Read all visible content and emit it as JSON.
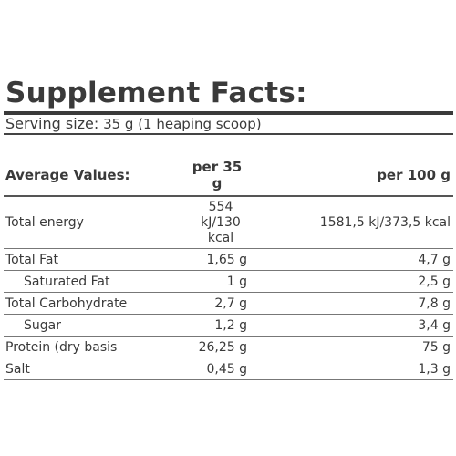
{
  "title": "Supplement Facts:",
  "serving": {
    "label": "Serving size:",
    "value": " 35 g (1 heaping scoop)"
  },
  "table": {
    "headers": [
      "Average Values:",
      "per 35 g",
      "per 100 g"
    ],
    "rows": [
      {
        "name": "Total energy",
        "per35": "554 kJ/130 kcal",
        "per100": "1581,5 kJ/373,5 kcal"
      },
      {
        "name": "Total Fat",
        "per35": "1,65 g",
        "per100": "4,7 g"
      },
      {
        "name": "Saturated Fat",
        "per35": "1 g",
        "per100": "2,5 g"
      },
      {
        "name": "Total Carbohydrate",
        "per35": "2,7 g",
        "per100": "7,8 g"
      },
      {
        "name": "Sugar",
        "per35": "1,2 g",
        "per100": "3,4 g"
      },
      {
        "name": "Protein (dry basis",
        "per35": "26,25 g",
        "per100": "75 g"
      },
      {
        "name": "Salt",
        "per35": "0,45 g",
        "per100": "1,3 g"
      }
    ]
  }
}
